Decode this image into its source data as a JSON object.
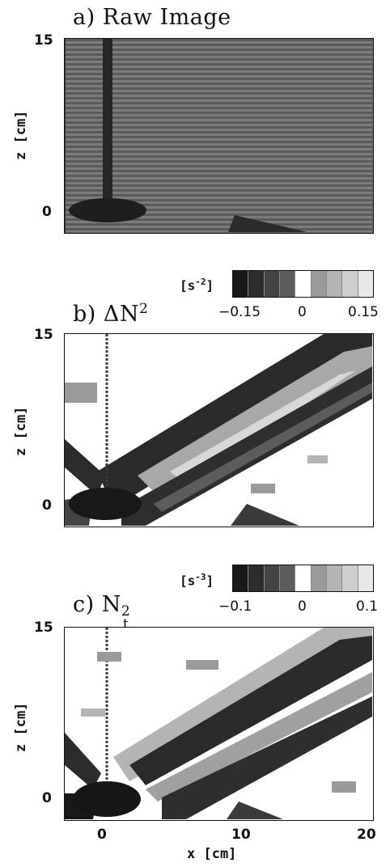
{
  "panels": [
    {
      "id": "a",
      "title": "a) Raw Image",
      "ylabel": "z [cm]",
      "yticks": [
        "15",
        "0"
      ]
    },
    {
      "id": "b",
      "title_prefix": "b) ",
      "title_main": "ΔN",
      "title_sup": "2",
      "ylabel": "z [cm]",
      "yticks": [
        "15",
        "0"
      ],
      "colorbar": {
        "unit_base": "[s",
        "unit_exp": "-2",
        "unit_close": "]",
        "ticks": [
          "−0.15",
          "0",
          "0.15"
        ],
        "colors": [
          "#181818",
          "#2c2c2c",
          "#444444",
          "#5c5c5c",
          "#ffffff",
          "#9a9a9a",
          "#b4b4b4",
          "#cfcfcf",
          "#e8e8e8"
        ]
      }
    },
    {
      "id": "c",
      "title_prefix": "c) ",
      "title_main": "N",
      "title_sup": "2",
      "title_sub": "t",
      "ylabel": "z [cm]",
      "yticks": [
        "15",
        "0"
      ],
      "colorbar": {
        "unit_base": "[s",
        "unit_exp": "-3",
        "unit_close": "]",
        "ticks": [
          "−0.1",
          "0",
          "0.1"
        ],
        "colors": [
          "#181818",
          "#2c2c2c",
          "#444444",
          "#5c5c5c",
          "#ffffff",
          "#9a9a9a",
          "#b4b4b4",
          "#cfcfcf",
          "#e8e8e8"
        ]
      }
    }
  ],
  "xaxis": {
    "label": "x [cm]",
    "ticks": [
      "0",
      "10",
      "20"
    ]
  }
}
